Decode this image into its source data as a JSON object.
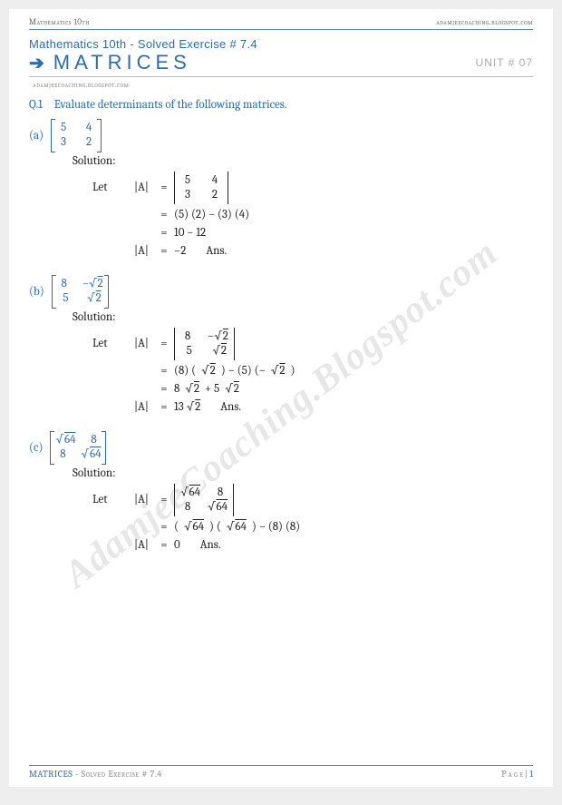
{
  "top": {
    "left": "Mathematics 10th",
    "right": "adamjeecoaching.blogspot.com"
  },
  "header": {
    "subtitle": "Mathematics 10th - Solved Exercise # 7.4",
    "title": "MATRICES",
    "unit": "UNIT # 07",
    "blog": "adamjeecoaching.blogspot.com"
  },
  "watermark": "AdamjeeCoaching.Blogspot.com",
  "question": {
    "num": "Q.1",
    "text": "Evaluate determinants of the following matrices."
  },
  "labels": {
    "solution": "Solution:",
    "let": "Let",
    "lhs": "|A|",
    "eq": "=",
    "ans": "Ans."
  },
  "parts": {
    "a": {
      "label": "(a)",
      "matrix": [
        [
          "5",
          "4"
        ],
        [
          "3",
          "2"
        ]
      ],
      "steps": {
        "det": [
          [
            "5",
            "4"
          ],
          [
            "3",
            "2"
          ]
        ],
        "line2": "(5) (2) − (3) (4)",
        "line3": "10 − 12",
        "line4": "−2"
      }
    },
    "b": {
      "label": "(b)",
      "matrix": [
        [
          "8",
          "−√2"
        ],
        [
          "5",
          "√2"
        ]
      ],
      "steps": {
        "det": [
          [
            "8",
            "−√2"
          ],
          [
            "5",
            "√2"
          ]
        ],
        "line2": "(8) (√2) − (5) (−√2)",
        "line3": "8 √2  + 5 √2",
        "line4": "13 √2"
      }
    },
    "c": {
      "label": "(c)",
      "matrix": [
        [
          "√64",
          "8"
        ],
        [
          "8",
          "√64"
        ]
      ],
      "steps": {
        "det": [
          [
            "√64",
            "8"
          ],
          [
            "8",
            "√64"
          ]
        ],
        "line2": "(√64) (√64) − (8) (8)",
        "line4": "0"
      }
    }
  },
  "footer": {
    "left_blue": "MATRICES",
    "left_grey": " - Solved Exercise # 7.4",
    "right_label": "P a g e  | ",
    "page_num": "1"
  },
  "colors": {
    "accent": "#2a6db5",
    "grey": "#888888",
    "text": "#222222",
    "watermark": "rgba(120,120,120,0.18)",
    "background": "#ffffff"
  }
}
